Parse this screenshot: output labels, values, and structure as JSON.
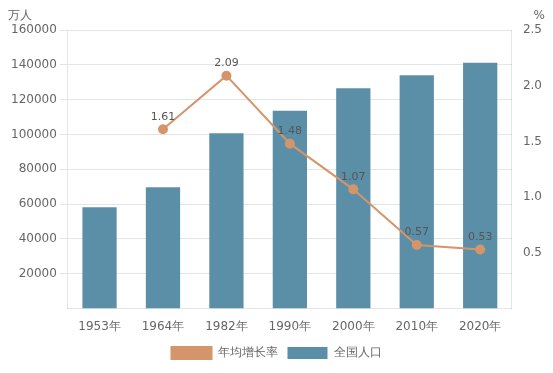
{
  "chart_data": {
    "type": "bar",
    "categories": [
      "1953年",
      "1964年",
      "1982年",
      "1990年",
      "2000年",
      "2010年",
      "2020年"
    ],
    "series": [
      {
        "name": "全国人口",
        "type": "bar",
        "color": "#5b8fa8",
        "values": [
          58260,
          69720,
          100720,
          113680,
          126583,
          133972,
          141178
        ]
      },
      {
        "name": "年均增长率",
        "type": "line",
        "color": "#d4956a",
        "marker": "circle",
        "axis": "y2",
        "data_labels": true,
        "values": [
          null,
          1.61,
          2.09,
          1.48,
          1.07,
          0.57,
          0.53
        ]
      }
    ],
    "ylabel": "万人",
    "y2label": "%",
    "ylim": [
      0,
      160000
    ],
    "yticks": [
      20000,
      40000,
      60000,
      80000,
      100000,
      120000,
      140000,
      160000
    ],
    "y2lim": [
      0,
      2.5
    ],
    "y2ticks": [
      0.5,
      {
        "value": 1.0,
        "label": "1.0"
      },
      1.5,
      {
        "value": 2.0,
        "label": "2.0"
      },
      2.5
    ],
    "grid": true,
    "legend": "bottom"
  }
}
